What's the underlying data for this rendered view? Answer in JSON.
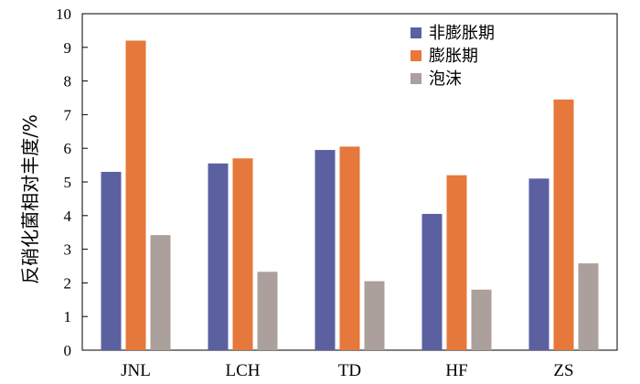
{
  "chart_data": {
    "type": "bar",
    "title": "",
    "xlabel": "",
    "ylabel": "反硝化菌相对丰度/%",
    "ylim": [
      0,
      10
    ],
    "yticks": [
      0,
      1,
      2,
      3,
      4,
      5,
      6,
      7,
      8,
      9,
      10
    ],
    "categories": [
      "JNL",
      "LCH",
      "TD",
      "HF",
      "ZS"
    ],
    "series": [
      {
        "name": "非膨胀期",
        "color": "#5b60a0",
        "values": [
          5.3,
          5.55,
          5.95,
          4.05,
          5.1
        ]
      },
      {
        "name": "膨胀期",
        "color": "#e5783a",
        "values": [
          9.2,
          5.7,
          6.05,
          5.2,
          7.45
        ]
      },
      {
        "name": "泡沫",
        "color": "#aba09c",
        "values": [
          3.42,
          2.33,
          2.05,
          1.8,
          2.58
        ]
      }
    ],
    "grid": false,
    "legend_position": "top-right"
  }
}
